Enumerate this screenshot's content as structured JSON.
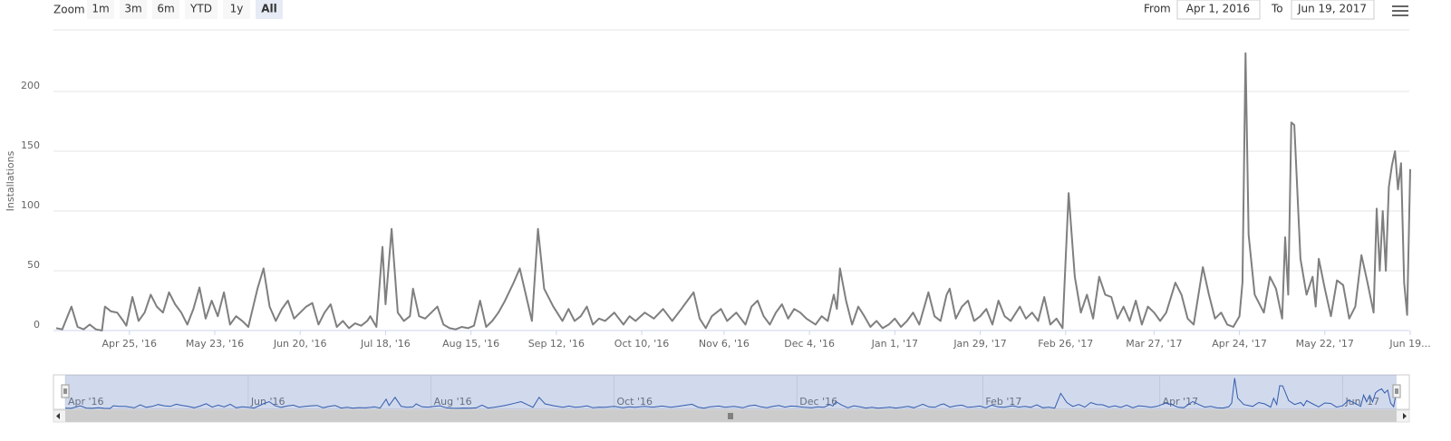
{
  "toolbar": {
    "zoom_label": "Zoom",
    "buttons": [
      "1m",
      "3m",
      "6m",
      "YTD",
      "1y",
      "All"
    ],
    "selected": "All",
    "from_label": "From",
    "from_value": "Apr 1, 2016",
    "to_label": "To",
    "to_value": "Jun 19, 2017"
  },
  "chart_data": {
    "type": "line",
    "y_axis_label": "Installations",
    "color": "#7f7f7f",
    "x": [
      "2016-04-01",
      "2016-04-03",
      "2016-04-06",
      "2016-04-08",
      "2016-04-10",
      "2016-04-12",
      "2016-04-14",
      "2016-04-16",
      "2016-04-17",
      "2016-04-19",
      "2016-04-21",
      "2016-04-23",
      "2016-04-24",
      "2016-04-26",
      "2016-04-28",
      "2016-04-30",
      "2016-05-02",
      "2016-05-04",
      "2016-05-06",
      "2016-05-08",
      "2016-05-10",
      "2016-05-12",
      "2016-05-14",
      "2016-05-16",
      "2016-05-18",
      "2016-05-20",
      "2016-05-22",
      "2016-05-24",
      "2016-05-26",
      "2016-05-28",
      "2016-05-30",
      "2016-06-01",
      "2016-06-03",
      "2016-06-06",
      "2016-06-08",
      "2016-06-10",
      "2016-06-12",
      "2016-06-14",
      "2016-06-16",
      "2016-06-18",
      "2016-06-20",
      "2016-06-22",
      "2016-06-24",
      "2016-06-26",
      "2016-06-28",
      "2016-06-30",
      "2016-07-02",
      "2016-07-04",
      "2016-07-06",
      "2016-07-08",
      "2016-07-10",
      "2016-07-12",
      "2016-07-13",
      "2016-07-15",
      "2016-07-17",
      "2016-07-18",
      "2016-07-20",
      "2016-07-22",
      "2016-07-24",
      "2016-07-26",
      "2016-07-27",
      "2016-07-29",
      "2016-07-31",
      "2016-08-02",
      "2016-08-04",
      "2016-08-06",
      "2016-08-08",
      "2016-08-10",
      "2016-08-12",
      "2016-08-14",
      "2016-08-16",
      "2016-08-18",
      "2016-08-20",
      "2016-08-22",
      "2016-08-24",
      "2016-08-26",
      "2016-08-29",
      "2016-08-31",
      "2016-09-02",
      "2016-09-04",
      "2016-09-06",
      "2016-09-08",
      "2016-09-11",
      "2016-09-14",
      "2016-09-16",
      "2016-09-18",
      "2016-09-20",
      "2016-09-22",
      "2016-09-24",
      "2016-09-26",
      "2016-09-28",
      "2016-10-01",
      "2016-10-04",
      "2016-10-06",
      "2016-10-08",
      "2016-10-11",
      "2016-10-14",
      "2016-10-17",
      "2016-10-20",
      "2016-10-23",
      "2016-10-25",
      "2016-10-27",
      "2016-10-29",
      "2016-10-31",
      "2016-11-02",
      "2016-11-05",
      "2016-11-07",
      "2016-11-10",
      "2016-11-13",
      "2016-11-15",
      "2016-11-17",
      "2016-11-19",
      "2016-11-21",
      "2016-11-23",
      "2016-11-25",
      "2016-11-27",
      "2016-11-29",
      "2016-12-01",
      "2016-12-03",
      "2016-12-06",
      "2016-12-08",
      "2016-12-10",
      "2016-12-12",
      "2016-12-13",
      "2016-12-14",
      "2016-12-16",
      "2016-12-18",
      "2016-12-20",
      "2016-12-22",
      "2016-12-24",
      "2016-12-26",
      "2016-12-28",
      "2016-12-30",
      "2017-01-01",
      "2017-01-03",
      "2017-01-05",
      "2017-01-07",
      "2017-01-09",
      "2017-01-12",
      "2017-01-14",
      "2017-01-16",
      "2017-01-18",
      "2017-01-19",
      "2017-01-21",
      "2017-01-23",
      "2017-01-25",
      "2017-01-27",
      "2017-01-29",
      "2017-01-31",
      "2017-02-02",
      "2017-02-04",
      "2017-02-06",
      "2017-02-08",
      "2017-02-11",
      "2017-02-13",
      "2017-02-15",
      "2017-02-17",
      "2017-02-19",
      "2017-02-21",
      "2017-02-23",
      "2017-02-25",
      "2017-02-27",
      "2017-03-01",
      "2017-03-03",
      "2017-03-05",
      "2017-03-07",
      "2017-03-09",
      "2017-03-11",
      "2017-03-13",
      "2017-03-15",
      "2017-03-17",
      "2017-03-19",
      "2017-03-21",
      "2017-03-23",
      "2017-03-25",
      "2017-03-27",
      "2017-03-29",
      "2017-03-31",
      "2017-04-03",
      "2017-04-05",
      "2017-04-07",
      "2017-04-09",
      "2017-04-12",
      "2017-04-14",
      "2017-04-16",
      "2017-04-18",
      "2017-04-20",
      "2017-04-22",
      "2017-04-24",
      "2017-04-25",
      "2017-04-26",
      "2017-04-27",
      "2017-04-29",
      "2017-05-02",
      "2017-05-04",
      "2017-05-06",
      "2017-05-08",
      "2017-05-09",
      "2017-05-10",
      "2017-05-11",
      "2017-05-12",
      "2017-05-14",
      "2017-05-16",
      "2017-05-18",
      "2017-05-19",
      "2017-05-20",
      "2017-05-22",
      "2017-05-24",
      "2017-05-26",
      "2017-05-28",
      "2017-05-30",
      "2017-06-01",
      "2017-06-03",
      "2017-06-05",
      "2017-06-07",
      "2017-06-08",
      "2017-06-09",
      "2017-06-10",
      "2017-06-11",
      "2017-06-12",
      "2017-06-13",
      "2017-06-14",
      "2017-06-15",
      "2017-06-16",
      "2017-06-17",
      "2017-06-18",
      "2017-06-19"
    ],
    "values": [
      2,
      1,
      20,
      3,
      1,
      5,
      1,
      0,
      20,
      16,
      15,
      8,
      4,
      28,
      8,
      15,
      30,
      20,
      15,
      32,
      22,
      15,
      5,
      18,
      36,
      10,
      25,
      12,
      32,
      5,
      12,
      8,
      3,
      35,
      52,
      20,
      8,
      18,
      25,
      10,
      15,
      20,
      23,
      5,
      15,
      22,
      3,
      8,
      2,
      6,
      4,
      8,
      12,
      3,
      70,
      22,
      85,
      15,
      8,
      12,
      35,
      12,
      10,
      15,
      20,
      5,
      2,
      1,
      3,
      2,
      4,
      25,
      3,
      8,
      15,
      24,
      40,
      52,
      30,
      8,
      85,
      35,
      20,
      8,
      18,
      8,
      12,
      20,
      5,
      10,
      8,
      15,
      5,
      12,
      8,
      15,
      10,
      18,
      8,
      18,
      25,
      32,
      10,
      2,
      12,
      18,
      8,
      15,
      5,
      20,
      25,
      12,
      5,
      15,
      22,
      10,
      18,
      15,
      10,
      5,
      12,
      8,
      30,
      18,
      52,
      25,
      5,
      20,
      12,
      3,
      8,
      2,
      5,
      10,
      3,
      8,
      15,
      5,
      32,
      12,
      8,
      30,
      35,
      10,
      20,
      25,
      8,
      12,
      18,
      5,
      25,
      12,
      8,
      20,
      10,
      15,
      8,
      28,
      5,
      10,
      2,
      115,
      45,
      15,
      30,
      10,
      45,
      30,
      28,
      10,
      20,
      8,
      25,
      5,
      20,
      15,
      8,
      15,
      40,
      30,
      10,
      5,
      53,
      30,
      10,
      15,
      5,
      3,
      12,
      40,
      232,
      80,
      30,
      15,
      45,
      35,
      10,
      78,
      30,
      174,
      172,
      60,
      30,
      45,
      20,
      60,
      35,
      12,
      42,
      38,
      10,
      20,
      63,
      40,
      15,
      102,
      50,
      100,
      50,
      120,
      138,
      150,
      118,
      140,
      40,
      13,
      135
    ],
    "xlim": [
      "2016-04-01",
      "2017-06-19"
    ],
    "xticks": [
      {
        "value": "2016-04-25",
        "label": "Apr 25, '16"
      },
      {
        "value": "2016-05-23",
        "label": "May 23, '16"
      },
      {
        "value": "2016-06-20",
        "label": "Jun 20, '16"
      },
      {
        "value": "2016-07-18",
        "label": "Jul 18, '16"
      },
      {
        "value": "2016-08-15",
        "label": "Aug 15, '16"
      },
      {
        "value": "2016-09-12",
        "label": "Sep 12, '16"
      },
      {
        "value": "2016-10-10",
        "label": "Oct 10, '16"
      },
      {
        "value": "2016-11-06",
        "label": "Nov 6, '16"
      },
      {
        "value": "2016-12-04",
        "label": "Dec 4, '16"
      },
      {
        "value": "2017-01-01",
        "label": "Jan 1, '17"
      },
      {
        "value": "2017-01-29",
        "label": "Jan 29, '17"
      },
      {
        "value": "2017-02-26",
        "label": "Feb 26, '17"
      },
      {
        "value": "2017-03-27",
        "label": "Mar 27, '17"
      },
      {
        "value": "2017-04-24",
        "label": "Apr 24, '17"
      },
      {
        "value": "2017-05-22",
        "label": "May 22, '17"
      },
      {
        "value": "2017-06-19",
        "label": "Jun 19..."
      }
    ],
    "ylim": [
      0,
      250
    ],
    "yticks": [
      0,
      50,
      100,
      150,
      200
    ],
    "grid": true,
    "navigator_xticks": [
      {
        "value": "2016-04-01",
        "label": "Apr '16"
      },
      {
        "value": "2016-06-01",
        "label": "Jun '16"
      },
      {
        "value": "2016-08-01",
        "label": "Aug '16"
      },
      {
        "value": "2016-10-01",
        "label": "Oct '16"
      },
      {
        "value": "2016-12-01",
        "label": "Dec '16"
      },
      {
        "value": "2017-02-01",
        "label": "Feb '17"
      },
      {
        "value": "2017-04-01",
        "label": "Apr '17"
      },
      {
        "value": "2017-06-01",
        "label": "Jun '17"
      }
    ]
  }
}
